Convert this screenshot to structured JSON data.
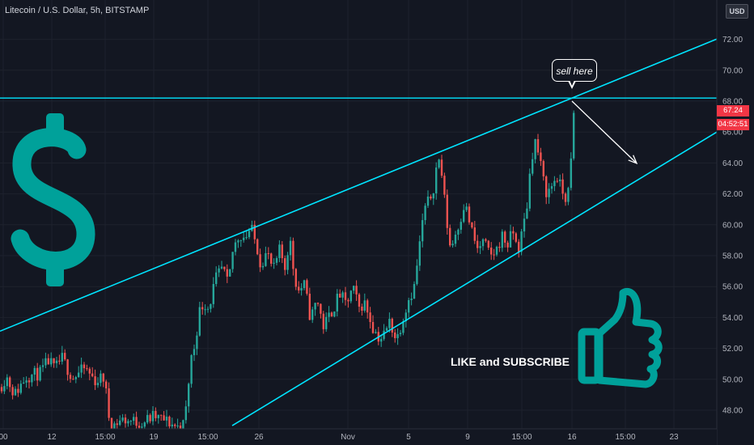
{
  "header": {
    "title": "Litecoin / U.S. Dollar, 5h, BITSTAMP"
  },
  "currency_badge": "USD",
  "last_price": {
    "price": "67.24",
    "countdown": "04:52:51"
  },
  "annotations": {
    "callout": "sell here",
    "cta": "LIKE and SUBSCRIBE"
  },
  "icons": [
    "dollar-sign-icon",
    "thumbs-up-icon"
  ],
  "colors": {
    "background": "#131722",
    "bull": "#26a69a",
    "bear": "#ef5350",
    "trendline": "#00e5ff",
    "icons": "#00a19a",
    "price_tag": "#f23645"
  },
  "chart_data": {
    "type": "candlestick",
    "title": "Litecoin / U.S. Dollar, 5h, BITSTAMP",
    "ylim": [
      46.5,
      74.5
    ],
    "y_ticks": [
      48.0,
      50.0,
      52.0,
      54.0,
      56.0,
      58.0,
      60.0,
      62.0,
      64.0,
      66.0,
      68.0,
      70.0,
      72.0
    ],
    "x_ticks": [
      "00",
      "12",
      "15:00",
      "19",
      "15:00",
      "26",
      "Nov",
      "5",
      "9",
      "15:00",
      "16",
      "15:00",
      "23"
    ],
    "last_price": 67.24,
    "resistance_level": 68.2,
    "upper_trendline": {
      "from": [
        "00",
        53.2
      ],
      "to": [
        "16",
        68.2
      ]
    },
    "lower_trendline": {
      "from": [
        "15:00",
        47.0
      ],
      "to": [
        "23",
        66.0
      ]
    },
    "projection_arrow": {
      "from": [
        "16",
        68.0
      ],
      "to": [
        "15:00",
        64.5
      ]
    },
    "candle_path": [
      [
        0,
        49.5
      ],
      [
        8,
        50.2
      ],
      [
        18,
        49.0
      ],
      [
        32,
        50.2
      ],
      [
        50,
        50.4
      ],
      [
        60,
        51.2
      ],
      [
        68,
        50.6
      ],
      [
        76,
        51.4
      ],
      [
        90,
        50.1
      ],
      [
        105,
        50.7
      ],
      [
        118,
        49.9
      ],
      [
        128,
        50.1
      ],
      [
        133,
        48.5
      ],
      [
        136,
        46.9
      ],
      [
        150,
        47.4
      ],
      [
        175,
        47.2
      ],
      [
        190,
        47.6
      ],
      [
        205,
        47.3
      ],
      [
        220,
        46.9
      ],
      [
        228,
        47.1
      ],
      [
        232,
        49.2
      ],
      [
        236,
        51.3
      ],
      [
        241,
        52.3
      ],
      [
        246,
        54.3
      ],
      [
        252,
        55.0
      ],
      [
        258,
        54.6
      ],
      [
        266,
        56.4
      ],
      [
        275,
        57.2
      ],
      [
        282,
        56.0
      ],
      [
        288,
        58.4
      ],
      [
        296,
        59.4
      ],
      [
        303,
        59.2
      ],
      [
        310,
        59.8
      ],
      [
        318,
        58.5
      ],
      [
        322,
        57.5
      ],
      [
        330,
        58.2
      ],
      [
        338,
        57.0
      ],
      [
        346,
        58.4
      ],
      [
        352,
        57.2
      ],
      [
        358,
        59.2
      ],
      [
        362,
        57.4
      ],
      [
        368,
        55.7
      ],
      [
        376,
        56.1
      ],
      [
        384,
        53.9
      ],
      [
        392,
        55.2
      ],
      [
        400,
        53.4
      ],
      [
        410,
        54.4
      ],
      [
        420,
        55.5
      ],
      [
        428,
        54.8
      ],
      [
        436,
        55.9
      ],
      [
        444,
        54.6
      ],
      [
        450,
        55.0
      ],
      [
        456,
        54.2
      ],
      [
        462,
        53.2
      ],
      [
        470,
        52.6
      ],
      [
        476,
        53.0
      ],
      [
        482,
        53.8
      ],
      [
        490,
        52.5
      ],
      [
        498,
        54.0
      ],
      [
        505,
        55.2
      ],
      [
        512,
        56.0
      ],
      [
        518,
        58.4
      ],
      [
        524,
        60.9
      ],
      [
        530,
        61.5
      ],
      [
        536,
        62.5
      ],
      [
        540,
        63.9
      ],
      [
        544,
        64.3
      ],
      [
        548,
        62.3
      ],
      [
        552,
        60.3
      ],
      [
        557,
        58.4
      ],
      [
        562,
        59.3
      ],
      [
        568,
        60.2
      ],
      [
        574,
        61.4
      ],
      [
        578,
        60.7
      ],
      [
        584,
        59.4
      ],
      [
        590,
        58.4
      ],
      [
        598,
        58.9
      ],
      [
        606,
        57.9
      ],
      [
        614,
        58.4
      ],
      [
        620,
        59.3
      ],
      [
        628,
        58.7
      ],
      [
        634,
        59.6
      ],
      [
        640,
        58.3
      ],
      [
        646,
        59.6
      ],
      [
        652,
        61.5
      ],
      [
        656,
        64.0
      ],
      [
        661,
        65.5
      ],
      [
        666,
        64.5
      ],
      [
        671,
        63.0
      ],
      [
        676,
        62.0
      ],
      [
        682,
        62.5
      ],
      [
        688,
        63.2
      ],
      [
        694,
        62.2
      ],
      [
        700,
        61.7
      ],
      [
        704,
        62.4
      ],
      [
        708,
        66.1
      ],
      [
        712,
        67.4
      ]
    ]
  }
}
